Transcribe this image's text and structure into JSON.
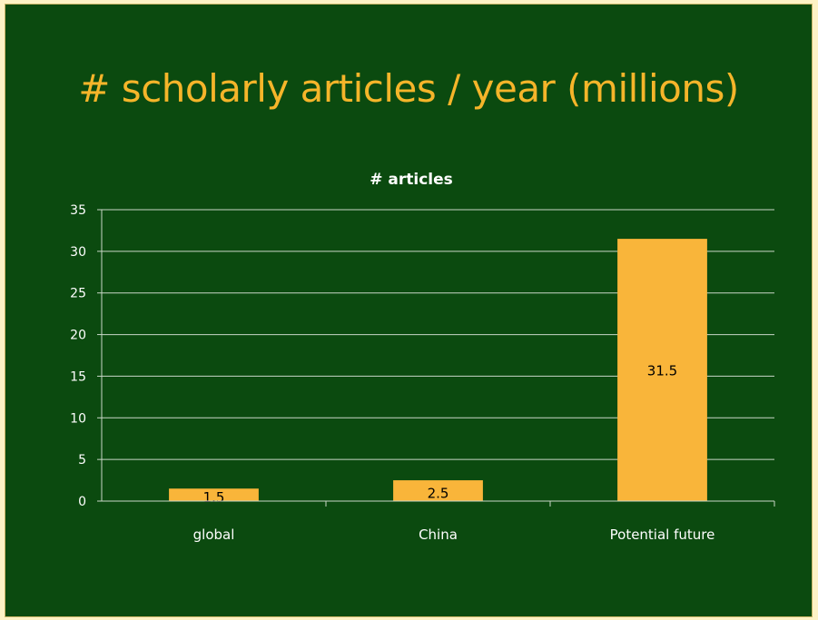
{
  "slide": {
    "title": "# scholarly articles / year (millions)"
  },
  "colors": {
    "background": "#0b4a0f",
    "title": "#f5b52a",
    "bar": "#f9b53a",
    "axis_text": "#ffffff",
    "label_text": "#000000",
    "gridline": "#c9d6c7"
  },
  "chart_data": {
    "type": "bar",
    "title": "# articles",
    "categories": [
      "global",
      "China",
      "Potential future"
    ],
    "values": [
      1.5,
      2.5,
      31.5
    ],
    "data_labels": [
      "1.5",
      "2.5",
      "31.5"
    ],
    "ylim": [
      0,
      35
    ],
    "yticks": [
      0,
      5,
      10,
      15,
      20,
      25,
      30,
      35
    ],
    "xlabel": "",
    "ylabel": "",
    "grid": true,
    "legend": "none"
  }
}
